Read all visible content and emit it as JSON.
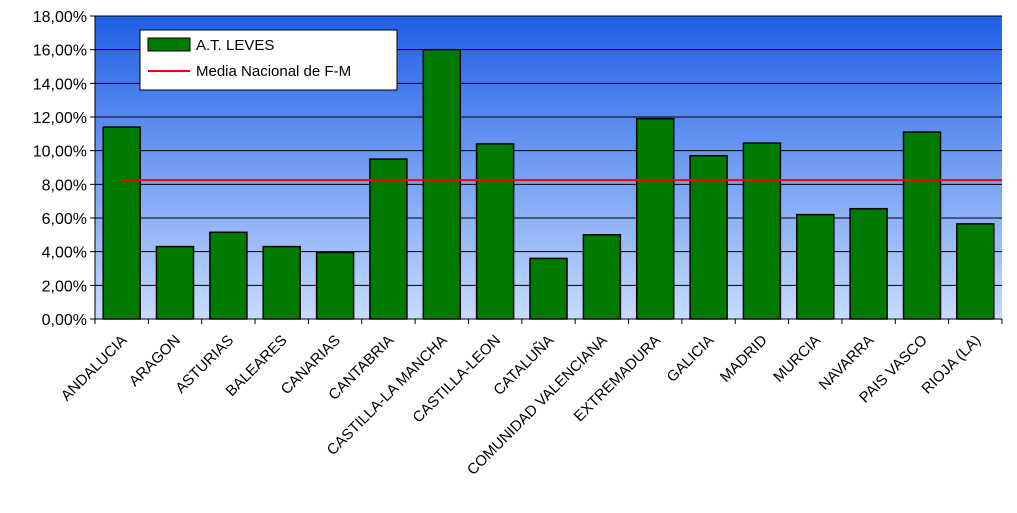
{
  "chart_data": {
    "type": "bar",
    "categories": [
      "ANDALUCIA",
      "ARAGON",
      "ASTURIAS",
      "BALEARES",
      "CANARIAS",
      "CANTABRIA",
      "CASTILLA-LA MANCHA",
      "CASTILLA-LEON",
      "CATALUÑA",
      "COMUNIDAD VALENCIANA",
      "EXTREMADURA",
      "GALICIA",
      "MADRID",
      "MURCIA",
      "NAVARRA",
      "PAIS VASCO",
      "RIOJA (LA)"
    ],
    "series": [
      {
        "name": "A.T. LEVES",
        "type": "bar",
        "color": "#007A00",
        "values": [
          11.4,
          4.3,
          5.15,
          4.3,
          3.95,
          9.5,
          16.0,
          10.4,
          3.6,
          5.0,
          11.9,
          9.7,
          10.45,
          6.2,
          6.55,
          11.1,
          5.65
        ]
      },
      {
        "name": "Media Nacional de F-M",
        "type": "line",
        "color": "#FF0000",
        "value": 8.25
      }
    ],
    "y_ticks": [
      "0,00%",
      "2,00%",
      "4,00%",
      "6,00%",
      "8,00%",
      "10,00%",
      "12,00%",
      "14,00%",
      "16,00%",
      "18,00%"
    ],
    "ylim": [
      0,
      18
    ],
    "ystep": 2,
    "grid": true,
    "legend": "top-left",
    "background_gradient": [
      "#1E5FE6",
      "#C6DBFF"
    ],
    "title": "",
    "xlabel": "",
    "ylabel": ""
  }
}
